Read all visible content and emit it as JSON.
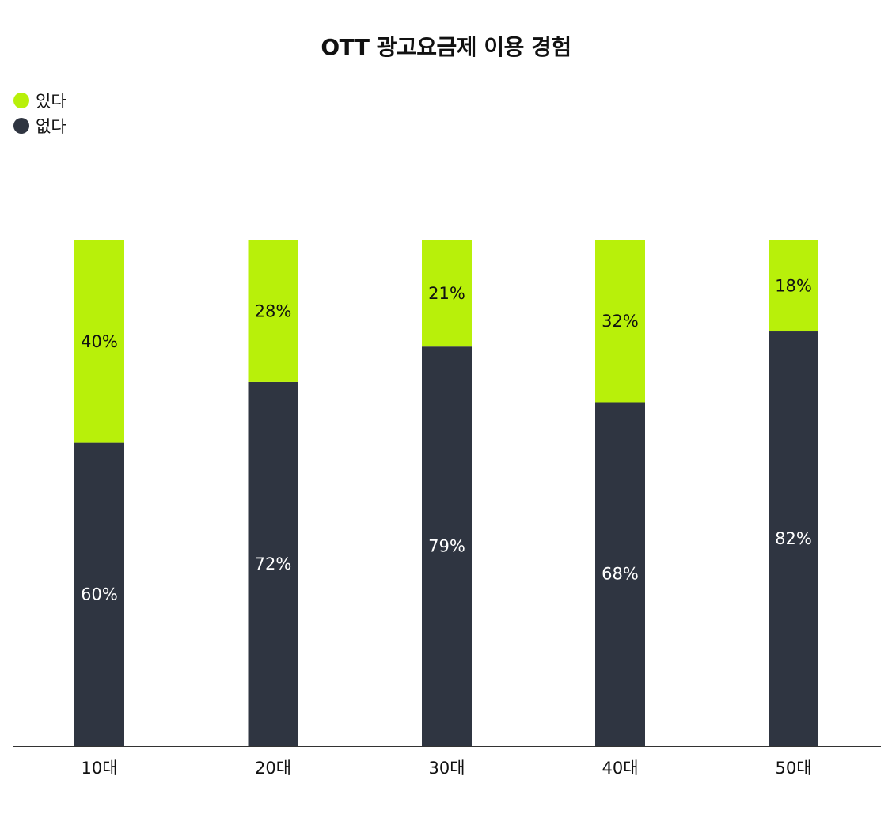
{
  "chart_data": {
    "type": "bar",
    "stacked": true,
    "percent_stacked": true,
    "title": "OTT 광고요금제 이용 경험",
    "categories": [
      "10대",
      "20대",
      "30대",
      "40대",
      "50대"
    ],
    "series": [
      {
        "name": "있다",
        "color": "#b8f00a",
        "label_color": "#111111",
        "values": [
          40,
          28,
          21,
          32,
          18
        ]
      },
      {
        "name": "없다",
        "color": "#2f3541",
        "label_color": "#ffffff",
        "values": [
          60,
          72,
          79,
          68,
          82
        ]
      }
    ],
    "value_suffix": "%",
    "ylim": [
      0,
      100
    ],
    "legend_position": "top-left",
    "grid": false
  }
}
